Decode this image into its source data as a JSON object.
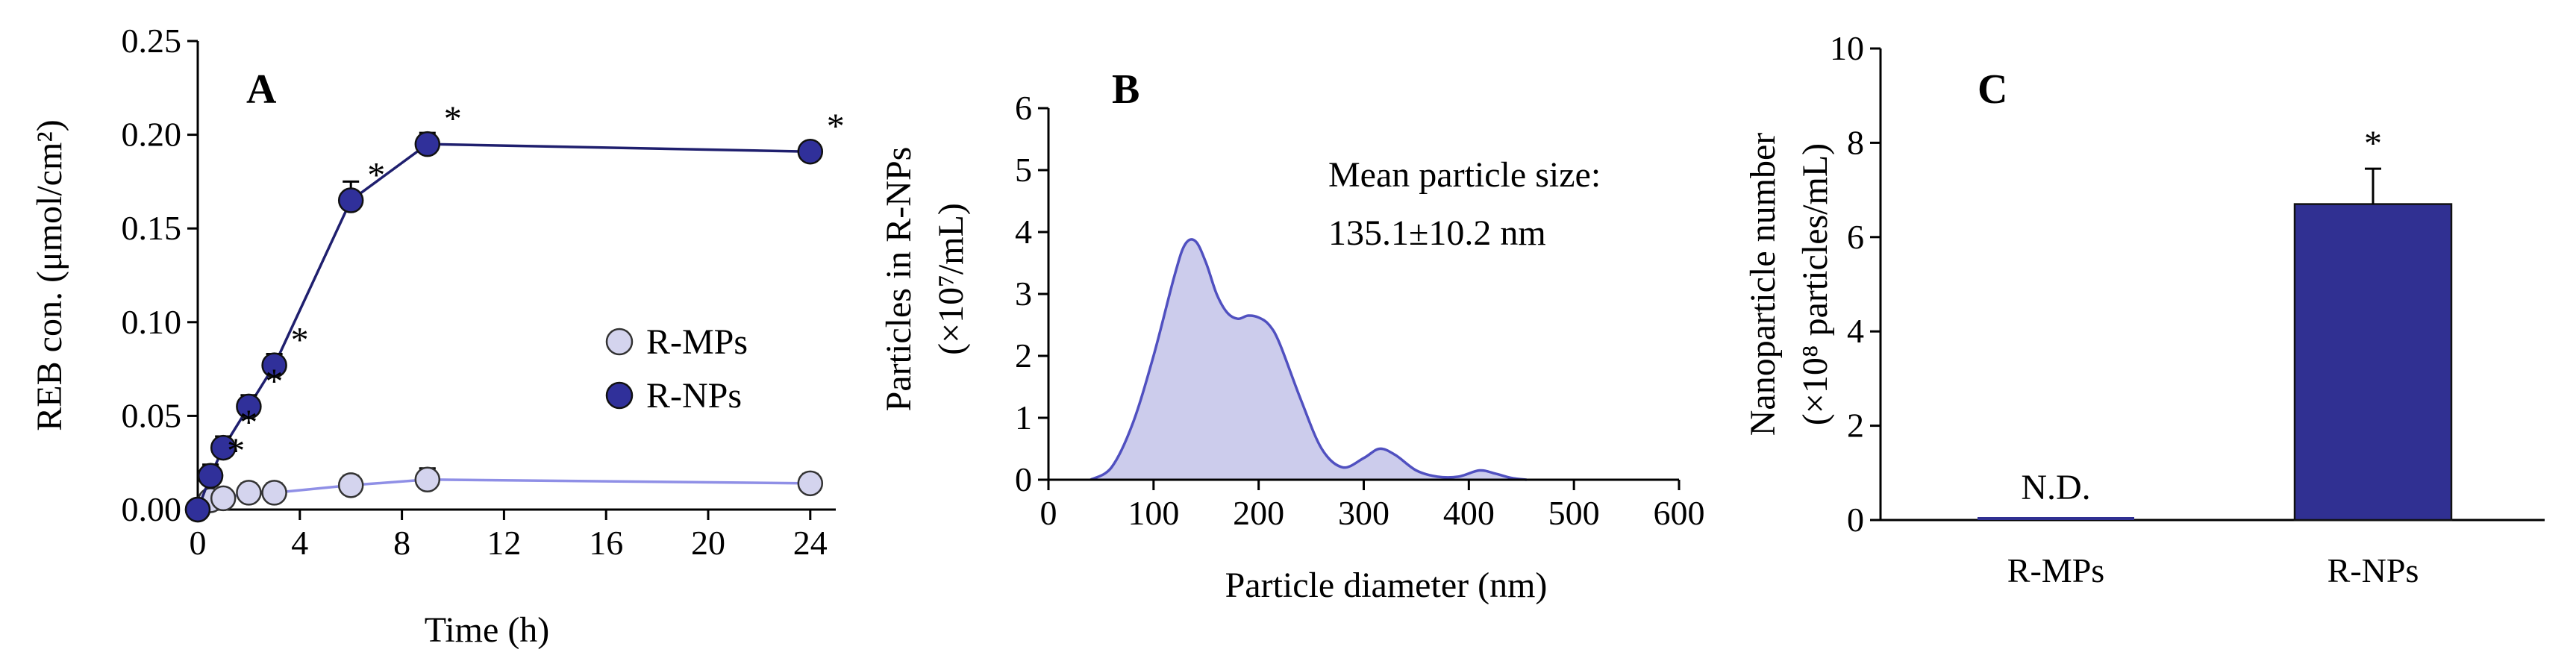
{
  "colors": {
    "rmp_fill": "#d4d4ee",
    "rmp_line": "#8f8fe6",
    "rnp_fill": "#30309a",
    "rnp_line": "#1f1f6e",
    "density_fill": "#ccccec",
    "density_line": "#5050c0",
    "bar_fill": "#303092"
  },
  "chart_data": [
    {
      "panel": "A",
      "type": "line",
      "xlabel": "Time (h)",
      "ylabel": "REB con. (μmol/cm²)",
      "xlim": [
        0,
        25
      ],
      "ylim": [
        0,
        0.25
      ],
      "xticks": [
        "0",
        "4",
        "8",
        "12",
        "16",
        "20",
        "24"
      ],
      "yticks": [
        "0.00",
        "0.05",
        "0.10",
        "0.15",
        "0.20",
        "0.25"
      ],
      "legend_position": "center-right",
      "series": [
        {
          "name": "R-MPs",
          "x": [
            0,
            0.5,
            1,
            2,
            3,
            6,
            9,
            24
          ],
          "y": [
            0.0,
            0.005,
            0.006,
            0.009,
            0.009,
            0.013,
            0.016,
            0.014
          ],
          "err": [
            0.0,
            0.003,
            0.003,
            0.005,
            0.005,
            0.005,
            0.006,
            0.005
          ]
        },
        {
          "name": "R-NPs",
          "x": [
            0,
            0.5,
            1,
            2,
            3,
            6,
            9,
            24
          ],
          "y": [
            0.0,
            0.018,
            0.033,
            0.055,
            0.077,
            0.165,
            0.195,
            0.191
          ],
          "err": [
            0.0,
            0.006,
            0.006,
            0.006,
            0.006,
            0.01,
            0.006,
            0.004
          ]
        }
      ],
      "significance_marker": "*",
      "significant_points_series": "R-NPs",
      "significant_points_x": [
        0.5,
        1,
        2,
        3,
        6,
        9,
        24
      ]
    },
    {
      "panel": "B",
      "type": "area",
      "xlabel": "Particle diameter (nm)",
      "ylabel_line1": "Particles in R-NPs",
      "ylabel_line2": "(×10⁷/mL)",
      "xlim": [
        0,
        600
      ],
      "ylim": [
        0,
        6
      ],
      "xticks": [
        "0",
        "100",
        "200",
        "300",
        "400",
        "500",
        "600"
      ],
      "yticks": [
        "0",
        "1",
        "2",
        "3",
        "4",
        "5",
        "6"
      ],
      "x": [
        40,
        60,
        80,
        100,
        120,
        130,
        140,
        150,
        160,
        170,
        180,
        190,
        200,
        210,
        220,
        240,
        260,
        280,
        300,
        315,
        330,
        350,
        370,
        390,
        410,
        425,
        440,
        455
      ],
      "y": [
        0,
        0.2,
        0.9,
        2.0,
        3.3,
        3.8,
        3.85,
        3.5,
        3.0,
        2.7,
        2.6,
        2.65,
        2.62,
        2.5,
        2.2,
        1.3,
        0.5,
        0.2,
        0.35,
        0.5,
        0.4,
        0.15,
        0.05,
        0.05,
        0.15,
        0.1,
        0.03,
        0
      ],
      "annotation_line1": "Mean particle size:",
      "annotation_line2": "135.1±10.2  nm"
    },
    {
      "panel": "C",
      "type": "bar",
      "xlabel": "",
      "ylabel_line1": "Nanoparticle number",
      "ylabel_line2": "(×10⁸ particles/mL)",
      "categories": [
        "R-MPs",
        "R-NPs"
      ],
      "values": [
        0,
        6.7
      ],
      "errors": [
        0,
        0.75
      ],
      "ylim": [
        0,
        10
      ],
      "yticks": [
        "0",
        "2",
        "4",
        "6",
        "8",
        "10"
      ],
      "bar_labels": [
        "N.D.",
        "*"
      ]
    }
  ]
}
